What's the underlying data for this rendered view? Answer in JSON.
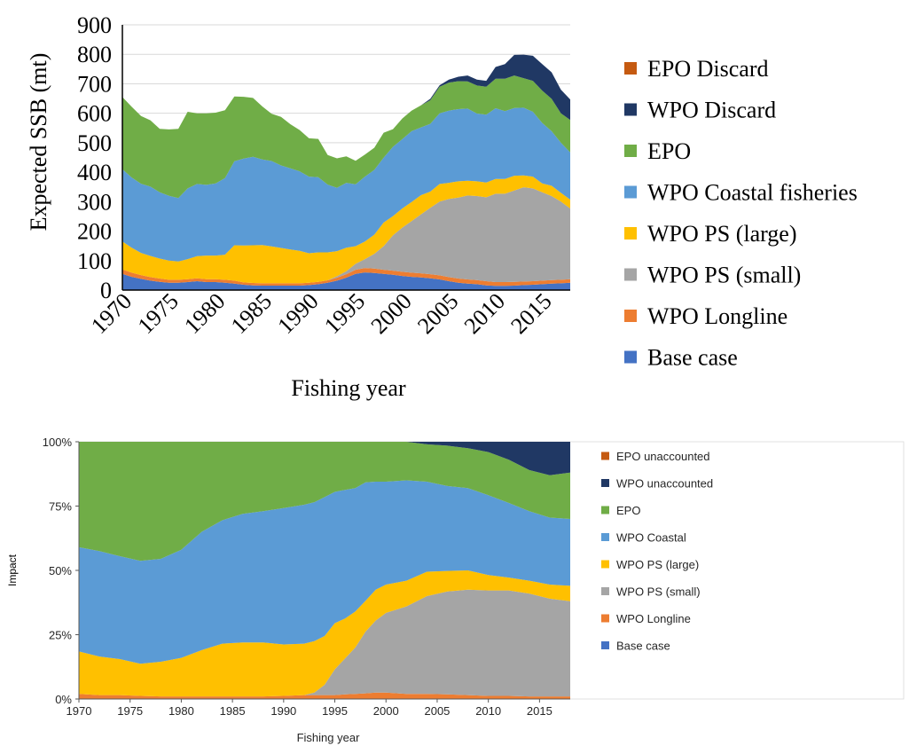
{
  "chart_data": [
    {
      "type": "area",
      "stacked": true,
      "title": "",
      "xlabel": "Fishing year",
      "ylabel": "Expected SSB (mt)",
      "ylim": [
        0,
        900
      ],
      "yticks": [
        "0",
        "100",
        "200",
        "300",
        "400",
        "500",
        "600",
        "700",
        "800",
        "900"
      ],
      "xticks": [
        "1970",
        "1975",
        "1980",
        "1985",
        "1990",
        "1995",
        "2000",
        "2005",
        "2010",
        "2015"
      ],
      "grid": true,
      "legend_position": "right",
      "x": [
        1970,
        1971,
        1972,
        1973,
        1974,
        1975,
        1976,
        1977,
        1978,
        1979,
        1980,
        1981,
        1982,
        1983,
        1984,
        1985,
        1986,
        1987,
        1988,
        1989,
        1990,
        1991,
        1992,
        1993,
        1994,
        1995,
        1996,
        1997,
        1998,
        1999,
        2000,
        2001,
        2002,
        2003,
        2004,
        2005,
        2006,
        2007,
        2008,
        2009,
        2010,
        2011,
        2012,
        2013,
        2014,
        2015,
        2016,
        2017,
        2018
      ],
      "series": [
        {
          "name": "Base case",
          "color": "#4472c4",
          "values": [
            55,
            45,
            38,
            32,
            28,
            25,
            25,
            27,
            30,
            27,
            27,
            25,
            22,
            18,
            16,
            15,
            15,
            15,
            15,
            15,
            17,
            20,
            25,
            32,
            42,
            55,
            60,
            58,
            55,
            52,
            48,
            45,
            43,
            40,
            36,
            30,
            25,
            22,
            20,
            16,
            14,
            14,
            15,
            17,
            18,
            20,
            22,
            23,
            25
          ]
        },
        {
          "name": "WPO Longline",
          "color": "#ed7d31",
          "values": [
            15,
            14,
            13,
            12,
            11,
            10,
            10,
            10,
            10,
            10,
            10,
            10,
            10,
            8,
            8,
            8,
            8,
            8,
            8,
            8,
            8,
            8,
            8,
            10,
            12,
            14,
            15,
            15,
            14,
            14,
            14,
            14,
            14,
            14,
            14,
            14,
            14,
            14,
            14,
            14,
            13,
            13,
            13,
            12,
            12,
            12,
            12,
            12,
            12
          ]
        },
        {
          "name": "WPO PS (small)",
          "color": "#a5a5a5",
          "values": [
            0,
            0,
            0,
            0,
            0,
            0,
            0,
            0,
            0,
            0,
            0,
            0,
            0,
            0,
            0,
            0,
            0,
            0,
            0,
            0,
            0,
            0,
            0,
            5,
            10,
            20,
            30,
            50,
            80,
            120,
            150,
            175,
            200,
            225,
            250,
            265,
            275,
            285,
            285,
            285,
            300,
            300,
            310,
            320,
            315,
            300,
            285,
            265,
            240
          ]
        },
        {
          "name": "WPO PS (large)",
          "color": "#ffc000",
          "values": [
            95,
            85,
            75,
            72,
            68,
            65,
            62,
            68,
            75,
            80,
            80,
            85,
            120,
            125,
            128,
            130,
            125,
            120,
            115,
            110,
            100,
            100,
            95,
            85,
            80,
            60,
            60,
            65,
            80,
            65,
            65,
            65,
            65,
            55,
            60,
            55,
            55,
            50,
            50,
            50,
            50,
            50,
            50,
            40,
            40,
            30,
            35,
            30,
            30
          ]
        },
        {
          "name": "WPO Coastal fisheries",
          "color": "#5b9bd5",
          "values": [
            245,
            238,
            235,
            235,
            225,
            220,
            215,
            240,
            245,
            240,
            245,
            260,
            285,
            295,
            300,
            290,
            290,
            280,
            275,
            270,
            260,
            255,
            230,
            215,
            220,
            210,
            220,
            220,
            220,
            235,
            235,
            240,
            230,
            230,
            240,
            245,
            245,
            245,
            230,
            230,
            240,
            230,
            230,
            230,
            220,
            205,
            185,
            170,
            160
          ]
        },
        {
          "name": "EPO",
          "color": "#70ad47",
          "values": [
            245,
            240,
            230,
            225,
            215,
            225,
            235,
            260,
            240,
            243,
            240,
            230,
            220,
            210,
            200,
            180,
            160,
            165,
            150,
            140,
            130,
            130,
            100,
            100,
            90,
            80,
            75,
            75,
            85,
            60,
            70,
            70,
            75,
            80,
            90,
            95,
            95,
            92,
            95,
            95,
            100,
            110,
            110,
            100,
            105,
            110,
            110,
            100,
            110
          ]
        },
        {
          "name": "WPO Discard",
          "color": "#203864",
          "values": [
            0,
            0,
            0,
            0,
            0,
            0,
            0,
            0,
            0,
            0,
            0,
            0,
            0,
            0,
            0,
            0,
            0,
            0,
            0,
            0,
            0,
            0,
            0,
            0,
            0,
            0,
            0,
            0,
            0,
            0,
            0,
            0,
            0,
            5,
            5,
            10,
            15,
            20,
            20,
            20,
            40,
            50,
            70,
            80,
            85,
            90,
            90,
            80,
            70
          ]
        },
        {
          "name": "EPO Discard",
          "color": "#c55a11",
          "values": [
            0,
            0,
            0,
            0,
            0,
            0,
            0,
            0,
            0,
            0,
            0,
            0,
            0,
            0,
            0,
            0,
            0,
            0,
            0,
            0,
            0,
            0,
            0,
            0,
            0,
            0,
            0,
            0,
            0,
            0,
            0,
            0,
            0,
            0,
            0,
            0,
            0,
            0,
            0,
            0,
            0,
            0,
            0,
            0,
            0,
            0,
            0,
            0,
            0
          ]
        }
      ]
    },
    {
      "type": "area",
      "stacked": true,
      "title": "",
      "xlabel": "Fishing year",
      "ylabel": "Impact",
      "ylim": [
        0,
        100
      ],
      "yticks": [
        "0%",
        "25%",
        "50%",
        "75%",
        "100%"
      ],
      "xticks": [
        "1970",
        "1975",
        "1980",
        "1985",
        "1990",
        "1995",
        "2000",
        "2005",
        "2010",
        "2015"
      ],
      "grid": false,
      "legend_position": "right",
      "x": [
        1970,
        1972,
        1974,
        1976,
        1978,
        1980,
        1982,
        1984,
        1986,
        1988,
        1990,
        1992,
        1993,
        1994,
        1995,
        1996,
        1997,
        1998,
        1999,
        2000,
        2002,
        2004,
        2006,
        2008,
        2010,
        2012,
        2014,
        2016,
        2018
      ],
      "series": [
        {
          "name": "Base case",
          "color": "#4472c4",
          "values": [
            0,
            0,
            0,
            0,
            0,
            0,
            0,
            0,
            0,
            0,
            0,
            0,
            0,
            0,
            0,
            0,
            0,
            0,
            0,
            0,
            0,
            0,
            0,
            0,
            0,
            0,
            0,
            0,
            0
          ]
        },
        {
          "name": "WPO Longline",
          "color": "#ed7d31",
          "values": [
            2,
            1.5,
            1.5,
            1.2,
            1,
            1,
            1,
            1,
            1,
            1,
            1.2,
            1.5,
            1.5,
            1.5,
            1.5,
            1.8,
            2,
            2.2,
            2.5,
            2.5,
            2,
            2,
            1.8,
            1.5,
            1.2,
            1.2,
            1,
            1,
            1
          ]
        },
        {
          "name": "WPO PS (small)",
          "color": "#a5a5a5",
          "values": [
            0,
            0,
            0,
            0,
            0,
            0,
            0,
            0,
            0,
            0,
            0,
            0,
            1,
            4,
            10,
            14,
            18,
            24,
            28,
            31,
            34,
            38,
            40,
            41,
            41,
            41,
            40,
            38,
            37
          ]
        },
        {
          "name": "WPO PS (large)",
          "color": "#ffc000",
          "values": [
            16.5,
            15,
            14,
            12.5,
            13.5,
            15,
            18,
            20.5,
            21,
            21,
            20,
            20,
            20,
            19,
            18,
            15.5,
            14,
            12,
            12,
            11,
            10,
            9.5,
            8,
            7.5,
            6,
            5,
            5,
            5.5,
            6
          ]
        },
        {
          "name": "WPO Coastal",
          "color": "#5b9bd5",
          "values": [
            40.5,
            41,
            40,
            40,
            40,
            42,
            46,
            48,
            50,
            51,
            53,
            54,
            54,
            54,
            51,
            50,
            48,
            46,
            42,
            40,
            39,
            35,
            33,
            32,
            31,
            29,
            27,
            26,
            26
          ]
        },
        {
          "name": "EPO",
          "color": "#70ad47",
          "values": [
            41,
            42.5,
            44.5,
            46.3,
            45.5,
            42,
            35,
            30.5,
            28,
            27,
            25.8,
            24.5,
            23.5,
            21.5,
            19.5,
            18.7,
            18,
            15.8,
            15.5,
            15.5,
            15,
            14.5,
            15.7,
            15.5,
            16.8,
            16.8,
            16,
            16.5,
            18
          ]
        },
        {
          "name": "WPO unaccounted",
          "color": "#203864",
          "values": [
            0,
            0,
            0,
            0,
            0,
            0,
            0,
            0,
            0,
            0,
            0,
            0,
            0,
            0,
            0,
            0,
            0,
            0,
            0,
            0,
            0,
            1,
            1.5,
            2.5,
            4,
            7,
            11,
            13,
            12
          ]
        },
        {
          "name": "EPO unaccounted",
          "color": "#c55a11",
          "values": [
            0,
            0,
            0,
            0,
            0,
            0,
            0,
            0,
            0,
            0,
            0,
            0,
            0,
            0,
            0,
            0,
            0,
            0,
            0,
            0,
            0,
            0,
            0,
            0,
            0,
            0,
            0,
            0,
            0
          ]
        }
      ]
    }
  ]
}
